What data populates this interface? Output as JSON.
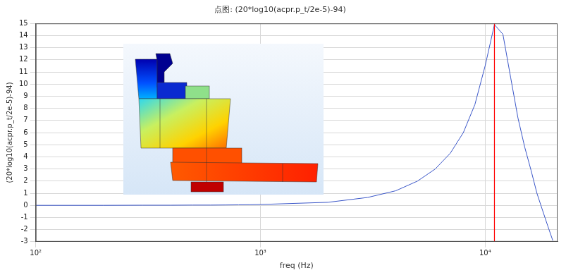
{
  "chart_data": {
    "type": "line",
    "title": "点图: (20*log10(acpr.p_t/2e-5)-94)",
    "x_label": "freq (Hz)",
    "y_label": "(20*log10(acpr.p_t/2e-5)-94)",
    "x": [
      100,
      200,
      300,
      400,
      500,
      600,
      700,
      800,
      900,
      1000,
      2000,
      3000,
      4000,
      5000,
      6000,
      7000,
      8000,
      9000,
      10000,
      11000,
      12000,
      13000,
      14000,
      15000,
      16000,
      17000,
      18000,
      19000,
      20000
    ],
    "series": [
      {
        "name": "(20*log10(acpr.p_t/2e-5)-94)",
        "color": "#3a56c8",
        "values": [
          0.0,
          0.0,
          0.01,
          0.01,
          0.02,
          0.02,
          0.03,
          0.04,
          0.05,
          0.07,
          0.25,
          0.65,
          1.2,
          2.0,
          3.0,
          4.3,
          6.0,
          8.3,
          11.5,
          14.9,
          14.1,
          10.5,
          7.2,
          4.8,
          2.9,
          1.0,
          -0.4,
          -1.7,
          -2.9
        ]
      }
    ],
    "log": "x",
    "xlim": [
      100,
      21000
    ],
    "xticks": [
      {
        "value": 100,
        "label": "10²"
      },
      {
        "value": 1000,
        "label": "10³"
      },
      {
        "value": 10000,
        "label": "10⁴"
      }
    ],
    "ylim": [
      -3,
      15
    ],
    "yticks": [
      -3,
      -2,
      -1,
      0,
      1,
      2,
      3,
      4,
      5,
      6,
      7,
      8,
      9,
      10,
      11,
      12,
      13,
      14,
      15
    ],
    "grid": true,
    "marker": "none",
    "line_style": "solid",
    "vline": {
      "x": 11000,
      "color": "#ff0000"
    }
  }
}
